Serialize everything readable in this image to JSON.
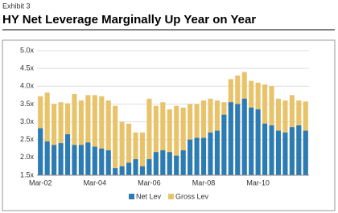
{
  "chart_data": {
    "type": "bar",
    "exhibit": "Exhibit 3",
    "title": "HY Net Leverage Marginally Up Year on Year",
    "categories": [
      "Mar-02",
      null,
      null,
      null,
      null,
      null,
      null,
      null,
      "Mar-04",
      null,
      null,
      null,
      null,
      null,
      null,
      null,
      "Mar-06",
      null,
      null,
      null,
      null,
      null,
      null,
      null,
      "Mar-08",
      null,
      null,
      null,
      null,
      null,
      null,
      null,
      "Mar-10",
      null,
      null,
      null,
      null,
      null,
      null,
      null
    ],
    "series": [
      {
        "name": "Gross Lev",
        "color": "#e8c36a",
        "values": [
          3.72,
          3.82,
          3.5,
          3.55,
          3.52,
          3.78,
          3.6,
          3.75,
          3.75,
          3.72,
          3.6,
          3.45,
          3.0,
          2.95,
          2.7,
          2.7,
          3.65,
          3.45,
          3.55,
          3.35,
          3.45,
          3.4,
          3.5,
          3.5,
          3.6,
          3.65,
          3.6,
          3.55,
          4.2,
          4.3,
          4.4,
          4.15,
          4.1,
          4.05,
          4.0,
          3.65,
          3.6,
          3.75,
          3.6,
          3.57
        ]
      },
      {
        "name": "Net Lev",
        "color": "#2b7bb5",
        "values": [
          2.82,
          2.45,
          2.35,
          2.4,
          2.65,
          2.35,
          2.35,
          2.42,
          2.3,
          2.25,
          2.2,
          1.7,
          1.75,
          1.85,
          1.95,
          1.75,
          1.95,
          2.15,
          2.2,
          2.15,
          2.05,
          2.2,
          2.5,
          2.55,
          2.55,
          2.7,
          2.75,
          3.2,
          3.55,
          3.5,
          3.65,
          3.4,
          3.35,
          2.95,
          2.9,
          2.75,
          2.7,
          2.85,
          2.9,
          2.75
        ]
      }
    ],
    "legend_order": [
      "Net Lev",
      "Gross Lev"
    ],
    "ylim": [
      1.5,
      5.0
    ],
    "yticks": [
      {
        "value": 1.5,
        "label": "1.5x"
      },
      {
        "value": 2.0,
        "label": "2.0x"
      },
      {
        "value": 2.5,
        "label": "2.5x"
      },
      {
        "value": 3.0,
        "label": "3.0x"
      },
      {
        "value": 3.5,
        "label": "3.5x"
      },
      {
        "value": 4.0,
        "label": "4.0x"
      },
      {
        "value": 4.5,
        "label": "4.5x"
      },
      {
        "value": 5.0,
        "label": "5.0x"
      }
    ],
    "grid": true
  }
}
